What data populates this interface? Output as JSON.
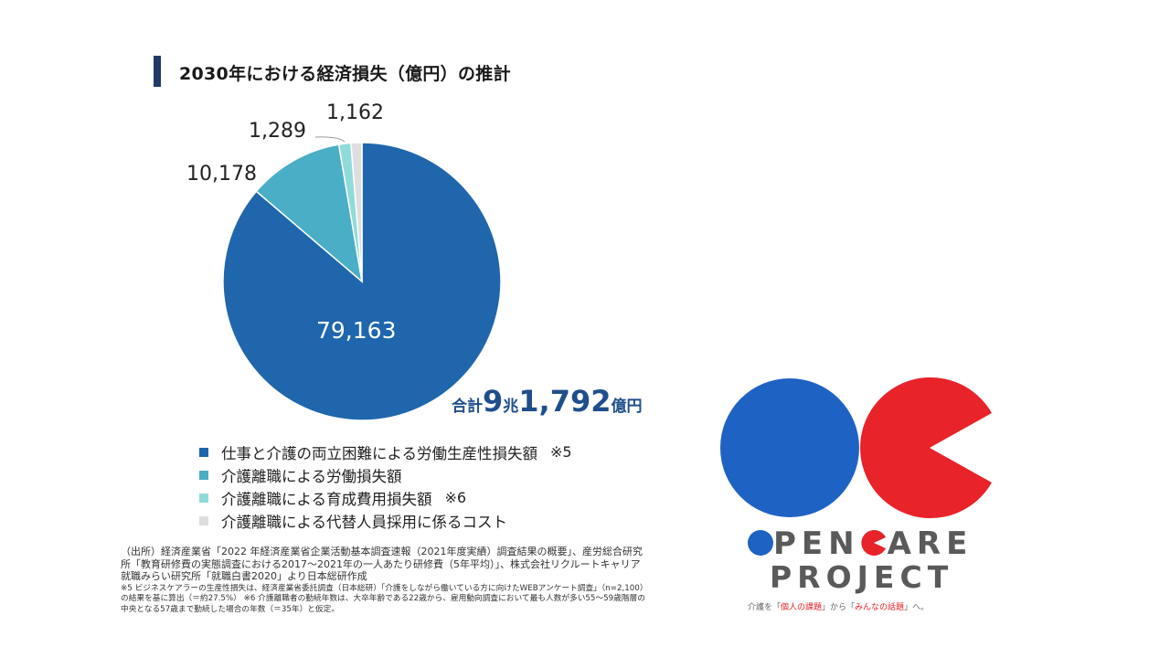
{
  "title": "2030年における経済損失（億円）の推計",
  "chart_data": {
    "type": "pie",
    "series": [
      {
        "name": "仕事と介護の両立困難による労働生産性損失額",
        "value": 79163,
        "label": "79,163",
        "color": "#1f66ad",
        "note": "※5"
      },
      {
        "name": "介護離職による労働損失額",
        "value": 10178,
        "label": "10,178",
        "color": "#4aaec6",
        "note": ""
      },
      {
        "name": "介護離職による育成費用損失額",
        "value": 1289,
        "label": "1,289",
        "color": "#8fdbd9",
        "note": "※6"
      },
      {
        "name": "介護離職による代替人員採用に係るコスト",
        "value": 1162,
        "label": "1,162",
        "color": "#dedede",
        "note": ""
      }
    ]
  },
  "total": {
    "prefix": "合計",
    "part1": "9",
    "unit1": "兆",
    "part2": "1,792",
    "unit2": "億円"
  },
  "notes": {
    "source": "（出所）経済産業省「2022 年経済産業省企業活動基本調査速報（2021年度実績）調査結果の概要」、産労総合研究所「教育研修費の実態調査における2017～2021年の一人あたり研修費（5年平均）」、株式会社リクルートキャリア就職みらい研究所「就職白書2020」より日本総研作成",
    "footnote": "※5 ビジネスケアラーの生産性損失は、経済産業省委託調査（日本総研）「介護をしながら働いている方に向けたWEBアンケート調査」（n=2,100）の結果を基に算出（＝約27.5%） ※6 介護離職者の勤続年数は、大卒年齢である22歳から、雇用動向調査において最も人数が多い55～59歳階層の中央となる57歳まで勤続した場合の年数（＝35年）と仮定。"
  },
  "logo": {
    "line1_a": "PEN",
    "line1_b": "ARE",
    "line2": "PROJECT",
    "tag_a": "介護を「",
    "tag_b": "個人の課題",
    "tag_c": "」から「",
    "tag_d": "みんなの話題",
    "tag_e": "」へ。",
    "blue": "#1e62c4",
    "red": "#e8232a"
  }
}
